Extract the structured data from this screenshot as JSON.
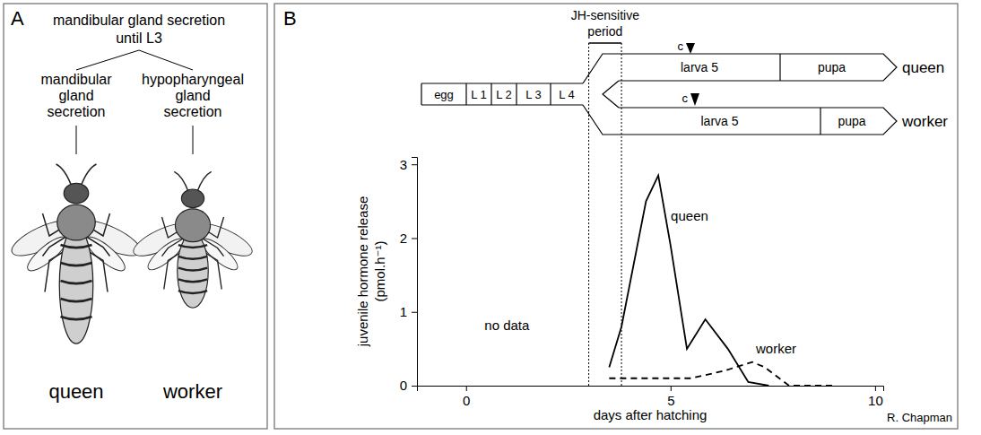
{
  "panel_a": {
    "letter": "A",
    "top": {
      "lines": [
        "mandibular gland secretion",
        "until L3"
      ]
    },
    "branches": [
      {
        "lines": [
          "mandibular",
          "gland",
          "secretion"
        ],
        "caste": "queen"
      },
      {
        "lines": [
          "hypopharyngeal",
          "gland",
          "secretion"
        ],
        "caste": "worker"
      }
    ]
  },
  "panel_b": {
    "letter": "B",
    "stages": [
      "egg",
      "L 1",
      "L 2",
      "L 3",
      "L 4"
    ],
    "tracks": [
      {
        "name": "queen",
        "stages": [
          "larva 5",
          "pupa"
        ],
        "marker": "c"
      },
      {
        "name": "worker",
        "stages": [
          "larva 5",
          "pupa"
        ],
        "marker": "c"
      }
    ],
    "credit": "R. Chapman"
  },
  "chart_data": {
    "type": "line",
    "x_label": "days after hatching",
    "y_label": [
      "juvenile hormone release",
      "(pmol.h⁻¹)"
    ],
    "xlim": [
      -1.2,
      10.2
    ],
    "xticks": [
      0,
      5,
      10
    ],
    "ylim": [
      0,
      3.1
    ],
    "yticks": [
      0,
      1,
      2,
      3
    ],
    "series": [
      {
        "name": "queen",
        "color": "#000000",
        "line_style": "solid",
        "x": [
          3.5,
          3.8,
          4.4,
          4.7,
          5.0,
          5.4,
          5.85,
          6.4,
          6.9,
          7.4
        ],
        "values": [
          0.25,
          0.8,
          2.5,
          2.85,
          1.9,
          0.5,
          0.9,
          0.5,
          0.05,
          0.0
        ]
      },
      {
        "name": "worker",
        "color": "#000000",
        "line_style": "dashed",
        "x": [
          3.5,
          5.5,
          6.3,
          7.0,
          7.3,
          7.9,
          9.0
        ],
        "values": [
          0.1,
          0.1,
          0.2,
          0.32,
          0.25,
          0.0,
          0.0
        ]
      }
    ],
    "annotations": [
      {
        "text": "no data",
        "x": 1.0,
        "y": 0.75
      },
      {
        "lines": [
          "JH-sensitive",
          "period"
        ],
        "x": [
          3.0,
          3.8
        ]
      }
    ]
  }
}
